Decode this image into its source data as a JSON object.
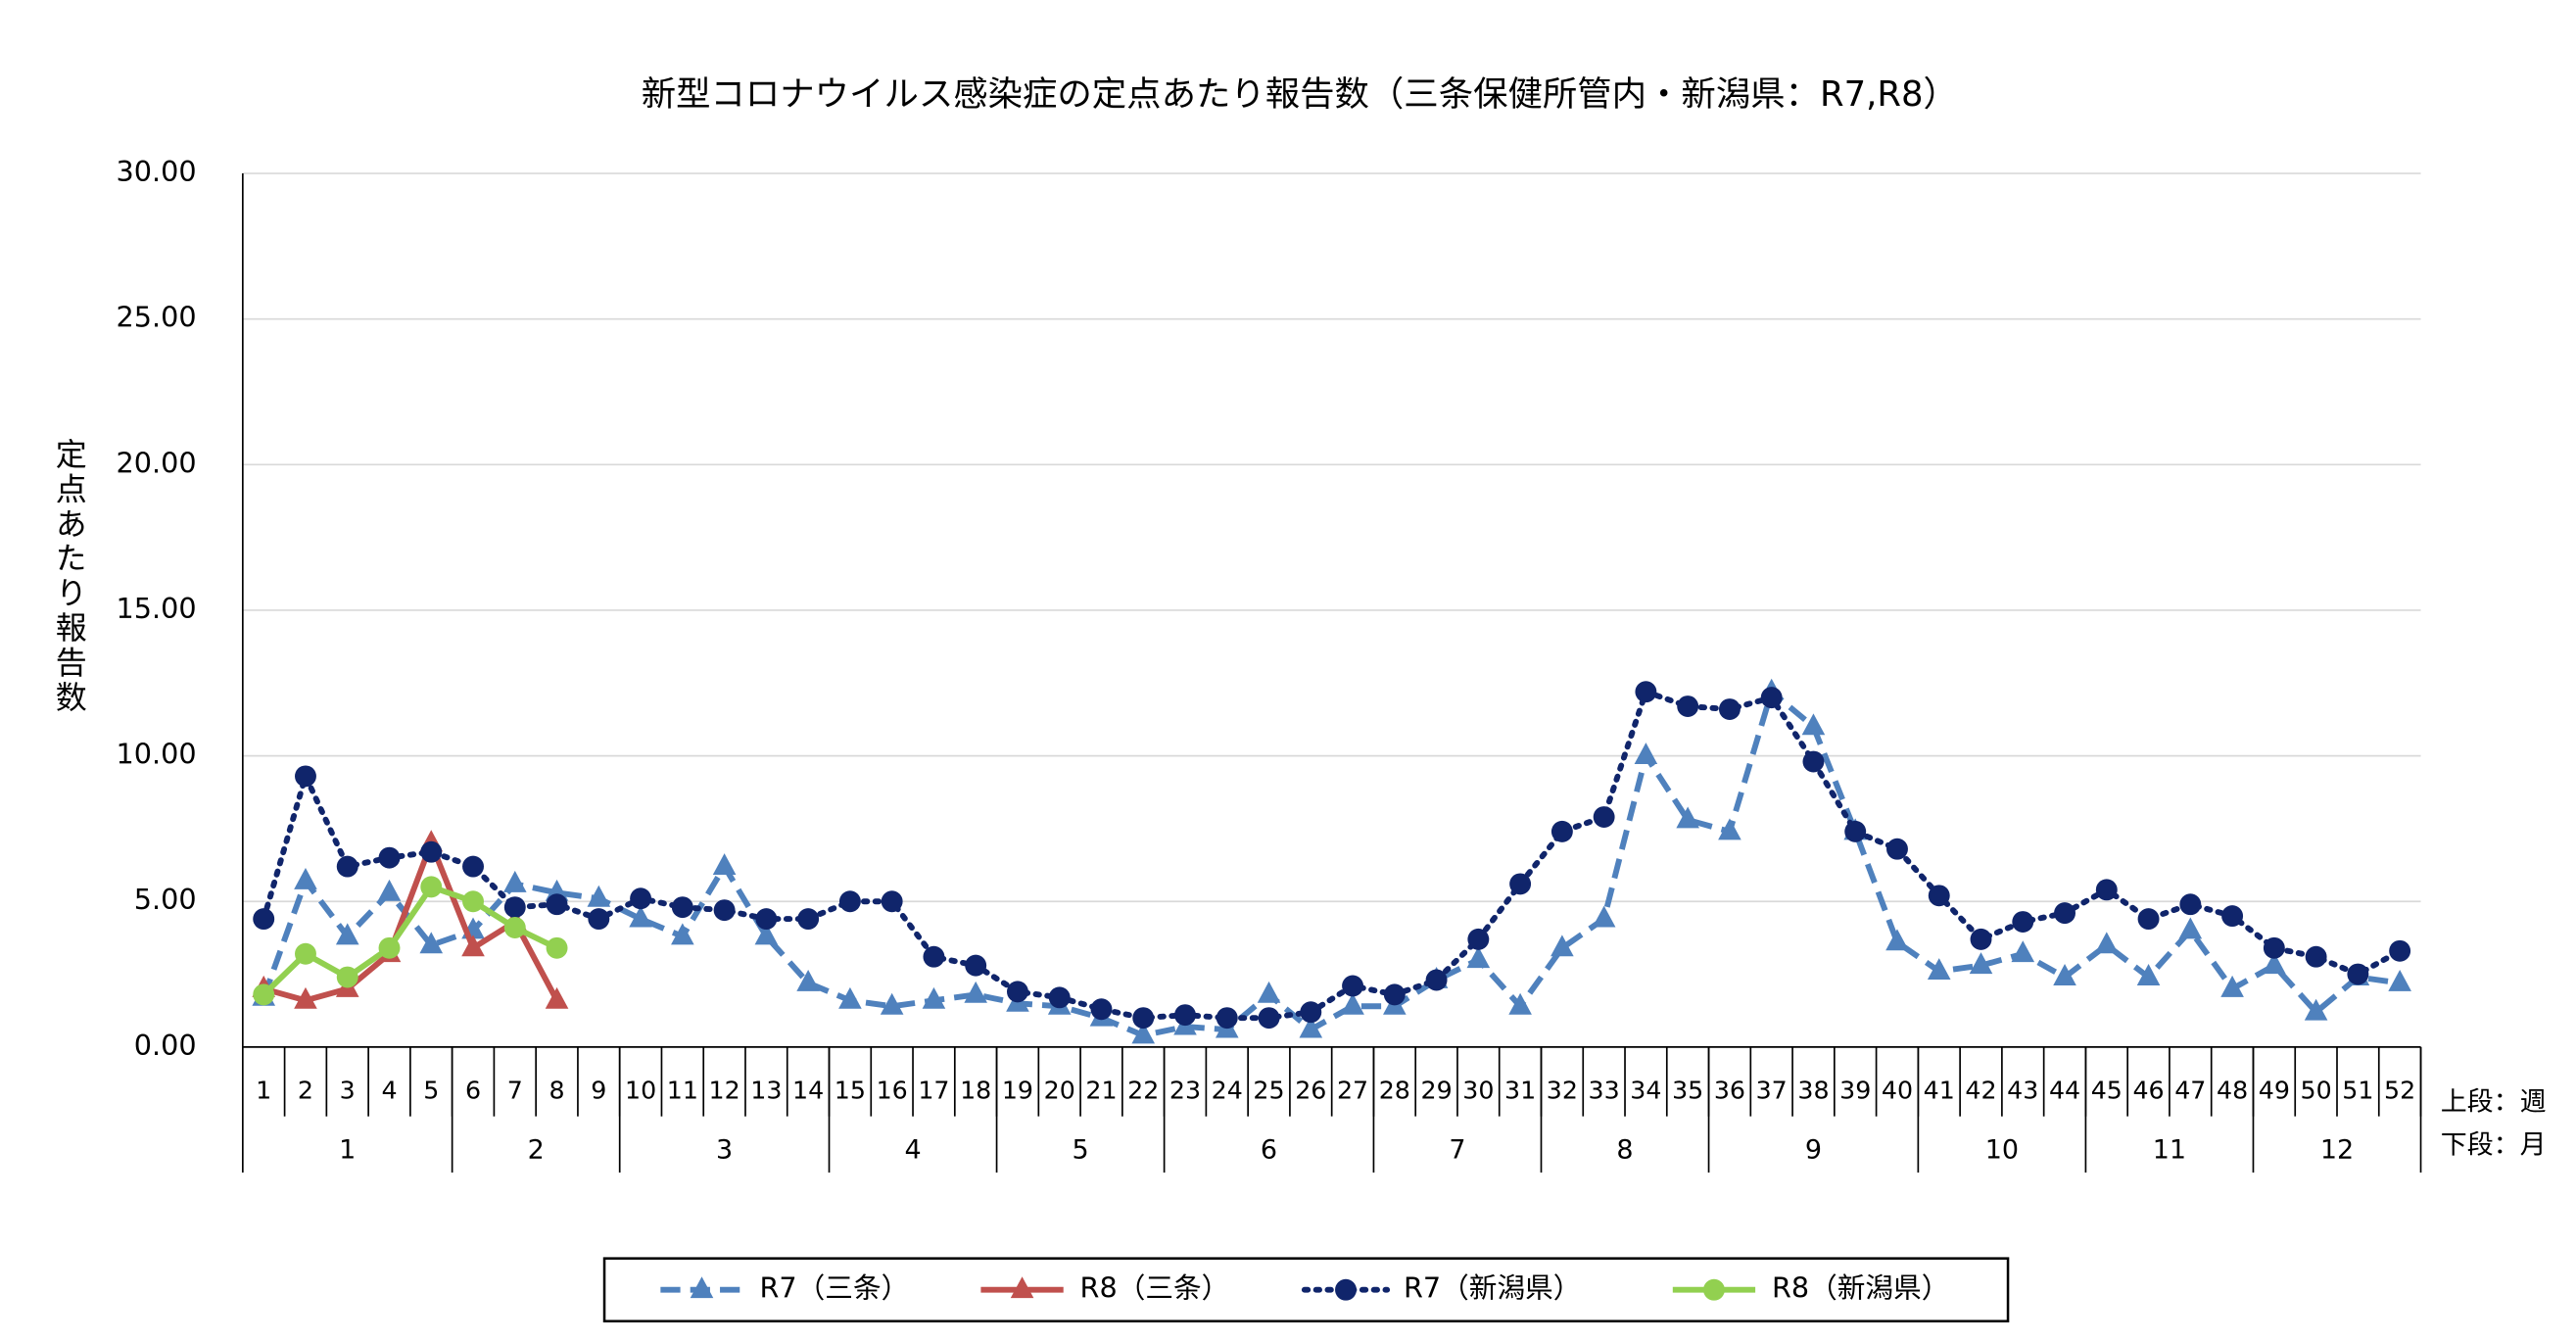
{
  "chart_data": {
    "type": "line",
    "title": "新型コロナウイルス感染症の定点あたり報告数（三条保健所管内・新潟県：R7,R8）",
    "y_label": "定点あたり報告数",
    "row_labels": [
      "上段：週",
      "下段：月"
    ],
    "categories": [
      "1",
      "2",
      "3",
      "4",
      "5",
      "6",
      "7",
      "8",
      "9",
      "10",
      "11",
      "12",
      "13",
      "14",
      "15",
      "16",
      "17",
      "18",
      "19",
      "20",
      "21",
      "22",
      "23",
      "24",
      "25",
      "26",
      "27",
      "28",
      "29",
      "30",
      "31",
      "32",
      "33",
      "34",
      "35",
      "36",
      "37",
      "38",
      "39",
      "40",
      "41",
      "42",
      "43",
      "44",
      "45",
      "46",
      "47",
      "48",
      "49",
      "50",
      "51",
      "52"
    ],
    "months": [
      1,
      1,
      1,
      1,
      1,
      2,
      2,
      2,
      2,
      3,
      3,
      3,
      3,
      3,
      4,
      4,
      4,
      4,
      5,
      5,
      5,
      5,
      6,
      6,
      6,
      6,
      6,
      7,
      7,
      7,
      7,
      8,
      8,
      8,
      8,
      9,
      9,
      9,
      9,
      9,
      10,
      10,
      10,
      10,
      11,
      11,
      11,
      11,
      12,
      12,
      12,
      12
    ],
    "ylim": [
      0,
      30
    ],
    "yticks": [
      {
        "value": 0,
        "label": "0.00"
      },
      {
        "value": 5,
        "label": "5.00"
      },
      {
        "value": 10,
        "label": "10.00"
      },
      {
        "value": 15,
        "label": "15.00"
      },
      {
        "value": 20,
        "label": "20.00"
      },
      {
        "value": 25,
        "label": "25.00"
      },
      {
        "value": 30,
        "label": "30.00"
      }
    ],
    "grid": true,
    "legend": "bottom",
    "series": [
      {
        "name": "R7（三条）",
        "color": "#4f81bd",
        "dash": "dashed",
        "marker": "triangle",
        "values": [
          1.7,
          5.7,
          3.8,
          5.3,
          3.5,
          4.0,
          5.6,
          5.3,
          5.1,
          4.4,
          3.8,
          6.2,
          3.8,
          2.2,
          1.6,
          1.4,
          1.6,
          1.8,
          1.5,
          1.4,
          1.0,
          0.4,
          0.7,
          0.6,
          1.8,
          0.6,
          1.4,
          1.4,
          2.3,
          3.0,
          1.4,
          3.4,
          4.4,
          10.0,
          7.8,
          7.4,
          12.2,
          11.0,
          7.4,
          3.6,
          2.6,
          2.8,
          3.2,
          2.4,
          3.5,
          2.4,
          4.0,
          2.0,
          2.8,
          1.2,
          2.4,
          2.2
        ]
      },
      {
        "name": "R8（三条）",
        "color": "#c0504d",
        "dash": "solid",
        "marker": "triangle",
        "values": [
          2.0,
          1.6,
          2.0,
          3.2,
          7.0,
          3.4,
          4.3,
          1.6,
          null,
          null,
          null,
          null,
          null,
          null,
          null,
          null,
          null,
          null,
          null,
          null,
          null,
          null,
          null,
          null,
          null,
          null,
          null,
          null,
          null,
          null,
          null,
          null,
          null,
          null,
          null,
          null,
          null,
          null,
          null,
          null,
          null,
          null,
          null,
          null,
          null,
          null,
          null,
          null,
          null,
          null,
          null,
          null
        ]
      },
      {
        "name": "R7（新潟県）",
        "color": "#10256b",
        "dash": "dotted",
        "marker": "circle",
        "values": [
          4.4,
          9.3,
          6.2,
          6.5,
          6.7,
          6.2,
          4.8,
          4.9,
          4.4,
          5.1,
          4.8,
          4.7,
          4.4,
          4.4,
          5.0,
          5.0,
          3.1,
          2.8,
          1.9,
          1.7,
          1.3,
          1.0,
          1.1,
          1.0,
          1.0,
          1.2,
          2.1,
          1.8,
          2.3,
          3.7,
          5.6,
          7.4,
          7.9,
          12.2,
          11.7,
          11.6,
          12.0,
          9.8,
          7.4,
          6.8,
          5.2,
          3.7,
          4.3,
          4.6,
          5.4,
          4.4,
          4.9,
          4.5,
          3.4,
          3.1,
          2.5,
          3.3
        ]
      },
      {
        "name": "R8（新潟県）",
        "color": "#92d050",
        "dash": "solid",
        "marker": "circle",
        "values": [
          1.8,
          3.2,
          2.4,
          3.4,
          5.5,
          5.0,
          4.1,
          3.4,
          null,
          null,
          null,
          null,
          null,
          null,
          null,
          null,
          null,
          null,
          null,
          null,
          null,
          null,
          null,
          null,
          null,
          null,
          null,
          null,
          null,
          null,
          null,
          null,
          null,
          null,
          null,
          null,
          null,
          null,
          null,
          null,
          null,
          null,
          null,
          null,
          null,
          null,
          null,
          null,
          null,
          null,
          null,
          null
        ]
      }
    ]
  }
}
